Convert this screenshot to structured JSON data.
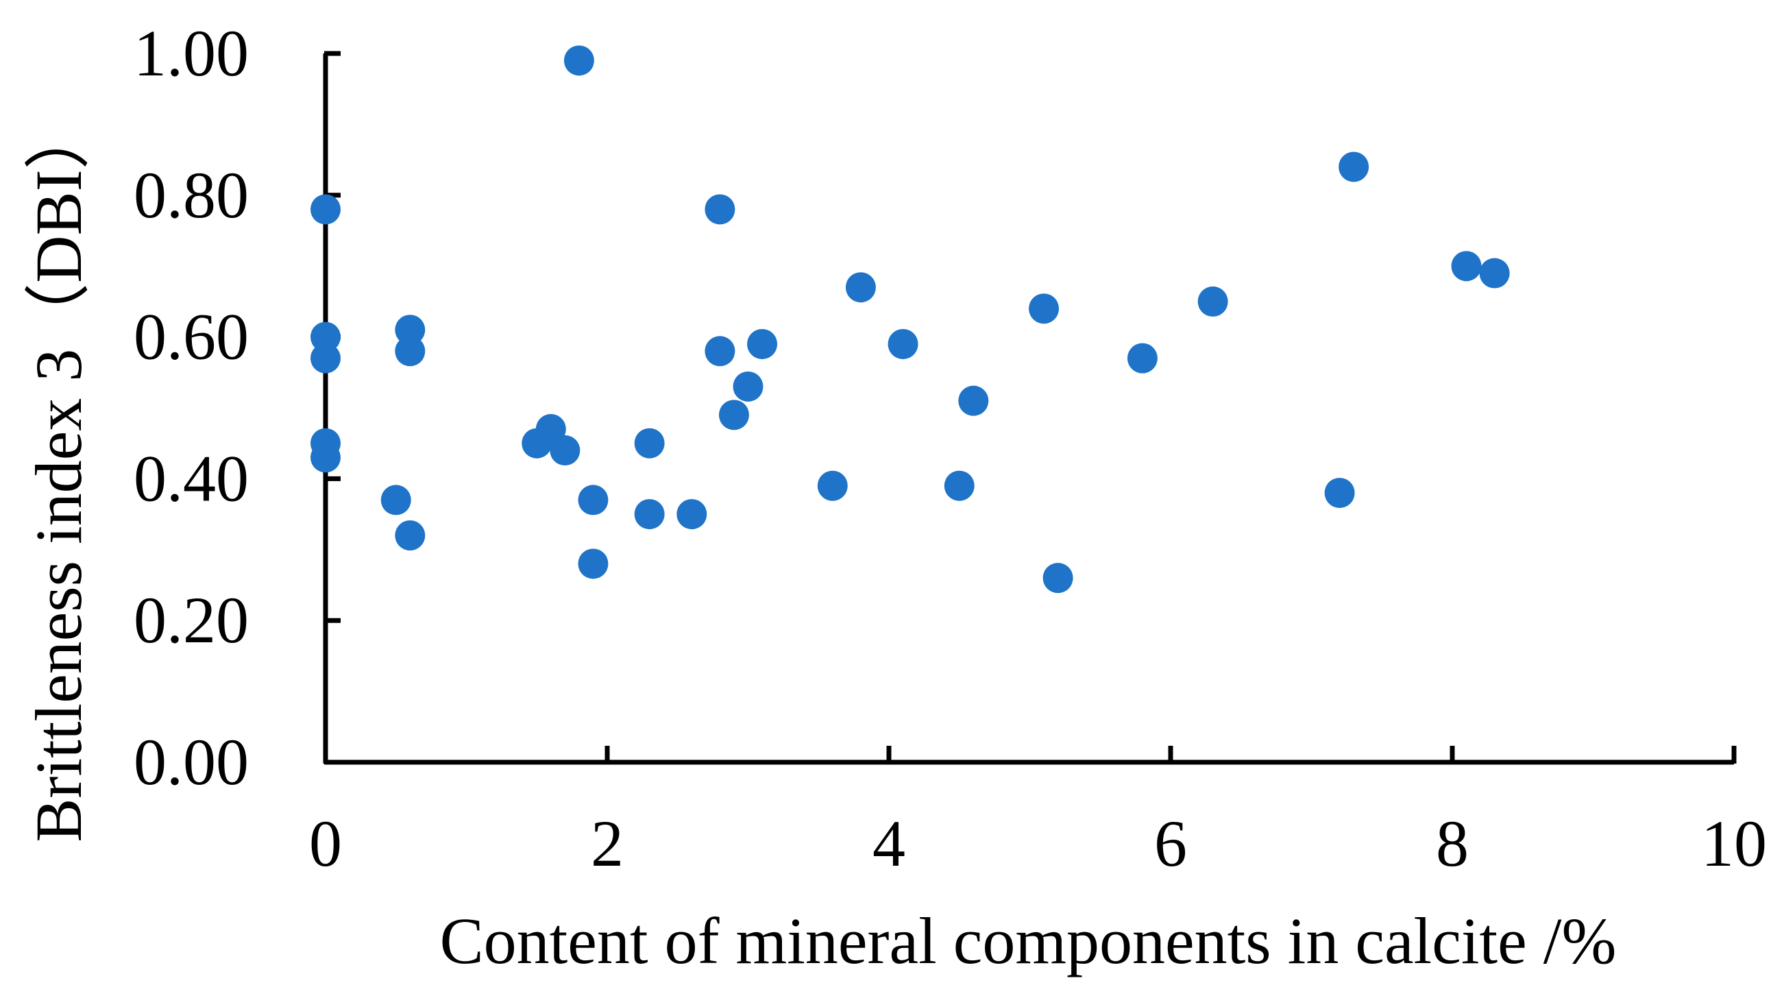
{
  "chart_data": {
    "type": "scatter",
    "title": "",
    "xlabel": "Content of mineral components in calcite /%",
    "ylabel": "Brittleness index 3（DBI）",
    "xlim": [
      0,
      10
    ],
    "ylim": [
      0,
      1
    ],
    "x_ticks": [
      "0",
      "2",
      "4",
      "6",
      "8",
      "10"
    ],
    "x_tick_values": [
      0,
      2,
      4,
      6,
      8,
      10
    ],
    "y_ticks": [
      "0.00",
      "0.20",
      "0.40",
      "0.60",
      "0.80",
      "1.00"
    ],
    "y_tick_values": [
      0,
      0.2,
      0.4,
      0.6,
      0.8,
      1.0
    ],
    "grid": false,
    "legend": "none",
    "marker_color": "#1f73c8",
    "series": [
      {
        "points": [
          {
            "x": 0.0,
            "y": 0.78
          },
          {
            "x": 0.0,
            "y": 0.6
          },
          {
            "x": 0.0,
            "y": 0.57
          },
          {
            "x": 0.0,
            "y": 0.45
          },
          {
            "x": 0.0,
            "y": 0.43
          },
          {
            "x": 0.5,
            "y": 0.37
          },
          {
            "x": 0.6,
            "y": 0.61
          },
          {
            "x": 0.6,
            "y": 0.58
          },
          {
            "x": 0.6,
            "y": 0.32
          },
          {
            "x": 1.5,
            "y": 0.45
          },
          {
            "x": 1.6,
            "y": 0.47
          },
          {
            "x": 1.7,
            "y": 0.44
          },
          {
            "x": 1.8,
            "y": 0.99
          },
          {
            "x": 1.9,
            "y": 0.37
          },
          {
            "x": 1.9,
            "y": 0.28
          },
          {
            "x": 2.3,
            "y": 0.45
          },
          {
            "x": 2.3,
            "y": 0.35
          },
          {
            "x": 2.6,
            "y": 0.35
          },
          {
            "x": 2.8,
            "y": 0.78
          },
          {
            "x": 2.8,
            "y": 0.58
          },
          {
            "x": 2.9,
            "y": 0.49
          },
          {
            "x": 3.0,
            "y": 0.53
          },
          {
            "x": 3.1,
            "y": 0.59
          },
          {
            "x": 3.6,
            "y": 0.39
          },
          {
            "x": 3.8,
            "y": 0.67
          },
          {
            "x": 4.1,
            "y": 0.59
          },
          {
            "x": 4.5,
            "y": 0.39
          },
          {
            "x": 4.6,
            "y": 0.51
          },
          {
            "x": 5.1,
            "y": 0.64
          },
          {
            "x": 5.2,
            "y": 0.26
          },
          {
            "x": 5.8,
            "y": 0.57
          },
          {
            "x": 6.3,
            "y": 0.65
          },
          {
            "x": 7.2,
            "y": 0.38
          },
          {
            "x": 7.3,
            "y": 0.84
          },
          {
            "x": 8.1,
            "y": 0.7
          },
          {
            "x": 8.3,
            "y": 0.69
          }
        ]
      }
    ]
  }
}
